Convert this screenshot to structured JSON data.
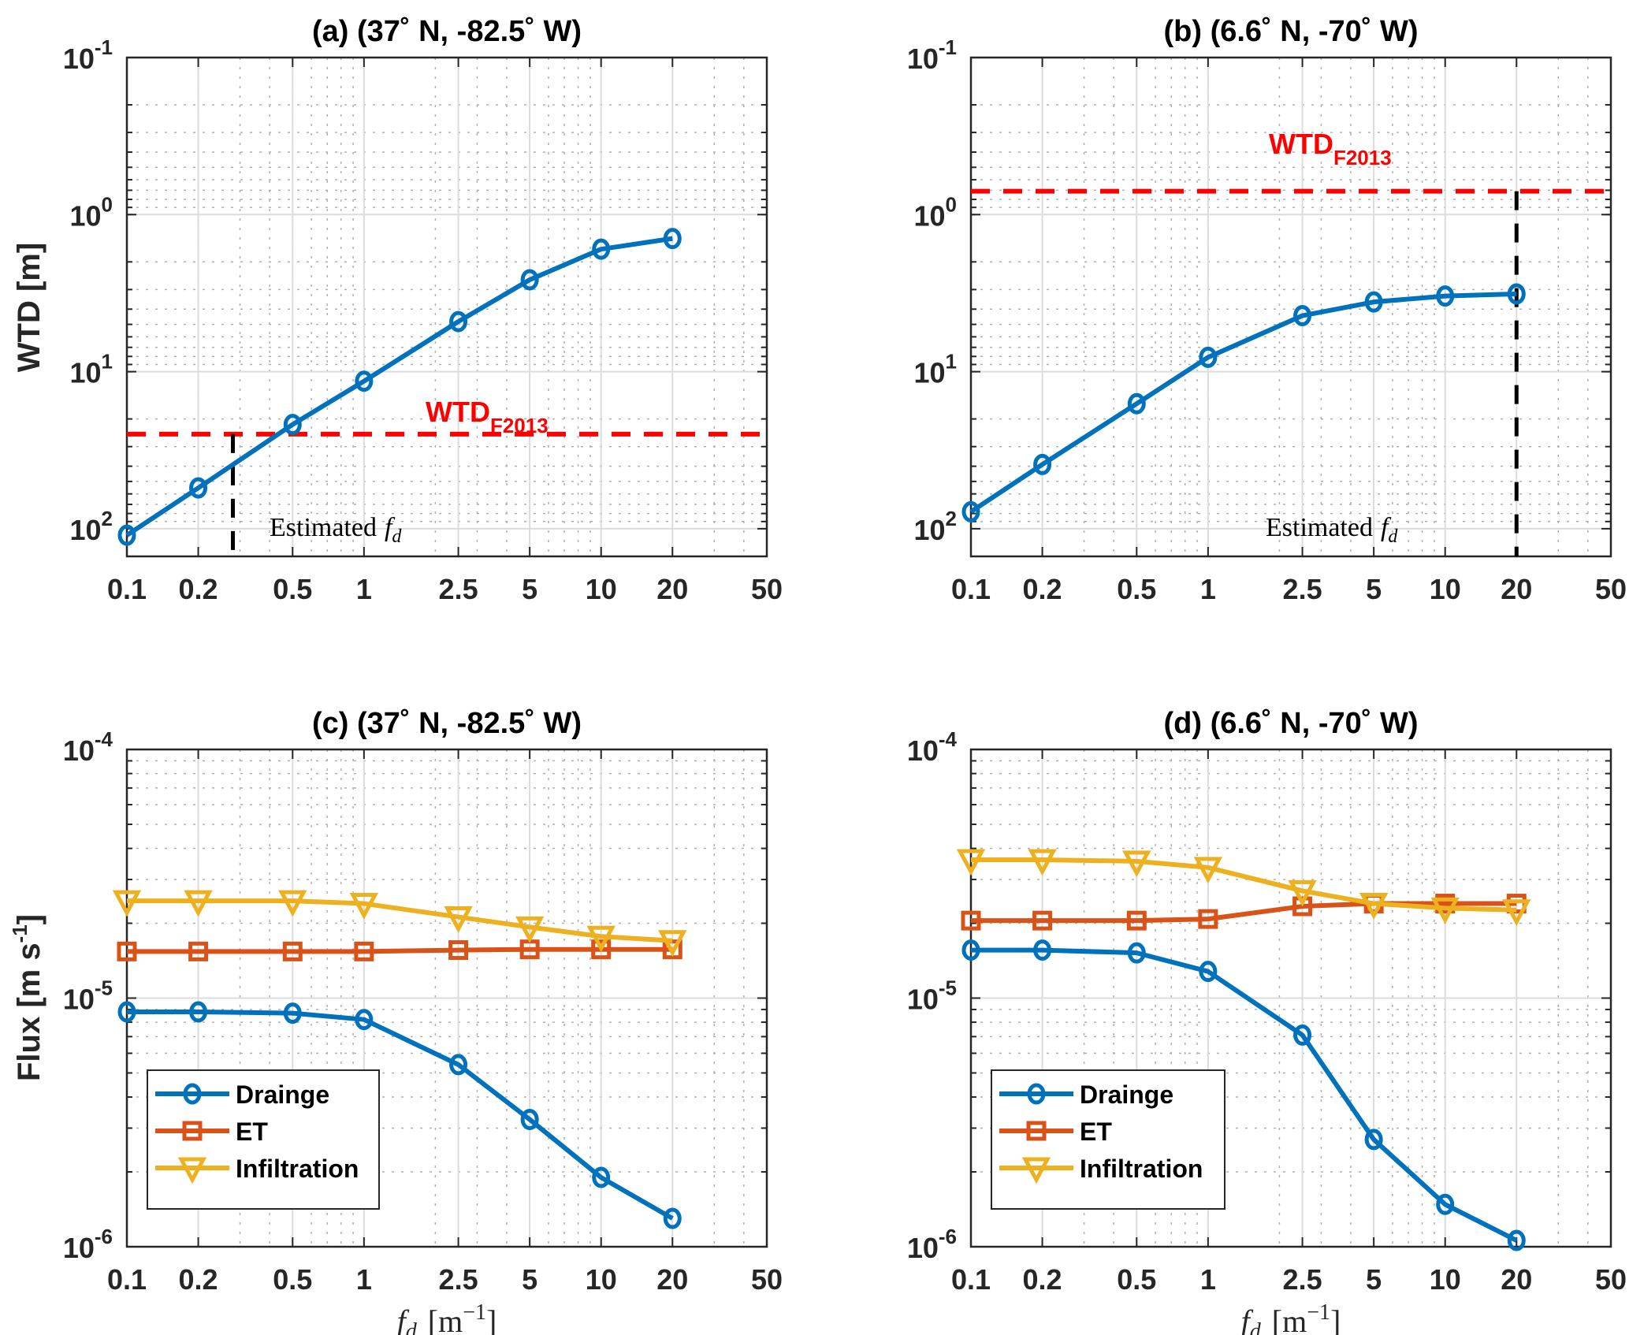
{
  "figure": {
    "x_ticks": [
      "0.1",
      "0.2",
      "0.5",
      "1",
      "2.5",
      "5",
      "10",
      "20",
      "50"
    ],
    "x_label": {
      "base": "f",
      "sub": "d",
      "unit": "[m",
      "unit_sup": "−1",
      "unit_close": "]"
    }
  },
  "chart_data": [
    {
      "id": "a",
      "type": "line",
      "title": "(a)  (37˚ N, -82.5˚ W)",
      "xlabel": "",
      "ylabel": "WTD [m]",
      "xscale": "log",
      "yscale": "log",
      "y_reversed": true,
      "xlim": [
        0.1,
        50
      ],
      "ylim": [
        0.1,
        150
      ],
      "y_ticks": [
        {
          "base": "10",
          "exp": "-1"
        },
        {
          "base": "10",
          "exp": "0"
        },
        {
          "base": "10",
          "exp": "1"
        },
        {
          "base": "10",
          "exp": "2"
        }
      ],
      "grid": true,
      "x": [
        0.1,
        0.2,
        0.5,
        1,
        2.5,
        5,
        10,
        20
      ],
      "series": [
        {
          "name": "WTD",
          "color": "#0072bd",
          "marker": "circle",
          "values": [
            110,
            55,
            21.7,
            11.5,
            4.8,
            2.6,
            1.66,
            1.42
          ]
        }
      ],
      "reference_line": {
        "label": "WTD",
        "label_sub": "F2013",
        "value": 25,
        "color": "#ff0000"
      },
      "estimate": {
        "label": "Estimated",
        "label_symbol": "f",
        "label_sub": "d",
        "value": 0.28,
        "color": "#000000"
      }
    },
    {
      "id": "b",
      "type": "line",
      "title": "(b)  (6.6˚ N, -70˚ W)",
      "xlabel": "",
      "ylabel": "",
      "xscale": "log",
      "yscale": "log",
      "y_reversed": true,
      "xlim": [
        0.1,
        50
      ],
      "ylim": [
        0.1,
        150
      ],
      "y_ticks": [
        {
          "base": "10",
          "exp": "-1"
        },
        {
          "base": "10",
          "exp": "0"
        },
        {
          "base": "10",
          "exp": "1"
        },
        {
          "base": "10",
          "exp": "2"
        }
      ],
      "grid": true,
      "x": [
        0.1,
        0.2,
        0.5,
        1,
        2.5,
        5,
        10,
        20
      ],
      "series": [
        {
          "name": "WTD",
          "color": "#0072bd",
          "marker": "circle",
          "values": [
            78,
            39,
            16,
            8.1,
            4.4,
            3.6,
            3.3,
            3.2
          ]
        }
      ],
      "reference_line": {
        "label": "WTD",
        "label_sub": "F2013",
        "value": 0.71,
        "color": "#ff0000"
      },
      "estimate": {
        "label": "Estimated",
        "label_symbol": "f",
        "label_sub": "d",
        "value": 20,
        "color": "#000000"
      }
    },
    {
      "id": "c",
      "type": "line",
      "title": "(c)  (37˚ N, -82.5˚ W)",
      "xlabel": "f_d [m^-1]",
      "ylabel": "Flux [m s",
      "ylabel_sup": "-1",
      "ylabel_close": "]",
      "xscale": "log",
      "yscale": "log",
      "y_reversed": false,
      "xlim": [
        0.1,
        50
      ],
      "ylim": [
        1e-06,
        0.0001
      ],
      "y_ticks": [
        {
          "base": "10",
          "exp": "-4"
        },
        {
          "base": "10",
          "exp": "-5"
        },
        {
          "base": "10",
          "exp": "-6"
        }
      ],
      "grid": true,
      "legend_position": "bottom-left",
      "x": [
        0.1,
        0.2,
        0.5,
        1,
        2.5,
        5,
        10,
        20
      ],
      "series": [
        {
          "name": "Drainge",
          "color": "#0072bd",
          "marker": "circle",
          "values": [
            8.8e-06,
            8.8e-06,
            8.7e-06,
            8.2e-06,
            5.4e-06,
            3.25e-06,
            1.9e-06,
            1.3e-06
          ]
        },
        {
          "name": "ET",
          "color": "#d95319",
          "marker": "square",
          "values": [
            1.54e-05,
            1.54e-05,
            1.54e-05,
            1.54e-05,
            1.56e-05,
            1.57e-05,
            1.57e-05,
            1.57e-05
          ]
        },
        {
          "name": "Infiltration",
          "color": "#edb120",
          "marker": "triangle-down",
          "values": [
            2.46e-05,
            2.46e-05,
            2.46e-05,
            2.4e-05,
            2.12e-05,
            1.93e-05,
            1.77e-05,
            1.7e-05
          ]
        }
      ]
    },
    {
      "id": "d",
      "type": "line",
      "title": "(d)  (6.6˚ N, -70˚ W)",
      "xlabel": "f_d [m^-1]",
      "ylabel": "",
      "xscale": "log",
      "yscale": "log",
      "y_reversed": false,
      "xlim": [
        0.1,
        50
      ],
      "ylim": [
        1e-06,
        0.0001
      ],
      "y_ticks": [
        {
          "base": "10",
          "exp": "-4"
        },
        {
          "base": "10",
          "exp": "-5"
        },
        {
          "base": "10",
          "exp": "-6"
        }
      ],
      "grid": true,
      "legend_position": "bottom-left",
      "x": [
        0.1,
        0.2,
        0.5,
        1,
        2.5,
        5,
        10,
        20
      ],
      "series": [
        {
          "name": "Drainge",
          "color": "#0072bd",
          "marker": "circle",
          "values": [
            1.56e-05,
            1.56e-05,
            1.52e-05,
            1.28e-05,
            7.1e-06,
            2.7e-06,
            1.48e-06,
            1.06e-06
          ]
        },
        {
          "name": "ET",
          "color": "#d95319",
          "marker": "square",
          "values": [
            2.05e-05,
            2.05e-05,
            2.05e-05,
            2.08e-05,
            2.34e-05,
            2.4e-05,
            2.4e-05,
            2.4e-05
          ]
        },
        {
          "name": "Infiltration",
          "color": "#edb120",
          "marker": "triangle-down",
          "values": [
            3.6e-05,
            3.6e-05,
            3.55e-05,
            3.35e-05,
            2.7e-05,
            2.4e-05,
            2.3e-05,
            2.26e-05
          ]
        }
      ]
    }
  ]
}
